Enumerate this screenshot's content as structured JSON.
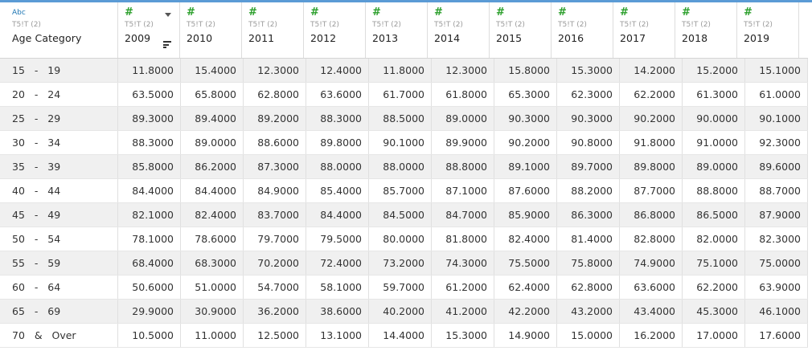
{
  "table": {
    "category_column": {
      "type_icon": "Abc",
      "source": "T5!T (2)",
      "name": "Age Category"
    },
    "year_columns": [
      {
        "type_icon": "#",
        "source": "T5!T (2)",
        "name": "2009"
      },
      {
        "type_icon": "#",
        "source": "T5!T (2)",
        "name": "2010"
      },
      {
        "type_icon": "#",
        "source": "T5!T (2)",
        "name": "2011"
      },
      {
        "type_icon": "#",
        "source": "T5!T (2)",
        "name": "2012"
      },
      {
        "type_icon": "#",
        "source": "T5!T (2)",
        "name": "2013"
      },
      {
        "type_icon": "#",
        "source": "T5!T (2)",
        "name": "2014"
      },
      {
        "type_icon": "#",
        "source": "T5!T (2)",
        "name": "2015"
      },
      {
        "type_icon": "#",
        "source": "T5!T (2)",
        "name": "2016"
      },
      {
        "type_icon": "#",
        "source": "T5!T (2)",
        "name": "2017"
      },
      {
        "type_icon": "#",
        "source": "T5!T (2)",
        "name": "2018"
      },
      {
        "type_icon": "#",
        "source": "T5!T (2)",
        "name": "2019"
      }
    ],
    "rows": [
      {
        "category": "15   -   19",
        "values": [
          "11.8000",
          "15.4000",
          "12.3000",
          "12.4000",
          "11.8000",
          "12.3000",
          "15.8000",
          "15.3000",
          "14.2000",
          "15.2000",
          "15.1000"
        ]
      },
      {
        "category": "20   -   24",
        "values": [
          "63.5000",
          "65.8000",
          "62.8000",
          "63.6000",
          "61.7000",
          "61.8000",
          "65.3000",
          "62.3000",
          "62.2000",
          "61.3000",
          "61.0000"
        ]
      },
      {
        "category": "25   -   29",
        "values": [
          "89.3000",
          "89.4000",
          "89.2000",
          "88.3000",
          "88.5000",
          "89.0000",
          "90.3000",
          "90.3000",
          "90.2000",
          "90.0000",
          "90.1000"
        ]
      },
      {
        "category": "30   -   34",
        "values": [
          "88.3000",
          "89.0000",
          "88.6000",
          "89.8000",
          "90.1000",
          "89.9000",
          "90.2000",
          "90.8000",
          "91.8000",
          "91.0000",
          "92.3000"
        ]
      },
      {
        "category": "35   -   39",
        "values": [
          "85.8000",
          "86.2000",
          "87.3000",
          "88.0000",
          "88.0000",
          "88.8000",
          "89.1000",
          "89.7000",
          "89.8000",
          "89.0000",
          "89.6000"
        ]
      },
      {
        "category": "40   -   44",
        "values": [
          "84.4000",
          "84.4000",
          "84.9000",
          "85.4000",
          "85.7000",
          "87.1000",
          "87.6000",
          "88.2000",
          "87.7000",
          "88.8000",
          "88.7000"
        ]
      },
      {
        "category": "45   -   49",
        "values": [
          "82.1000",
          "82.4000",
          "83.7000",
          "84.4000",
          "84.5000",
          "84.7000",
          "85.9000",
          "86.3000",
          "86.8000",
          "86.5000",
          "87.9000"
        ]
      },
      {
        "category": "50   -   54",
        "values": [
          "78.1000",
          "78.6000",
          "79.7000",
          "79.5000",
          "80.0000",
          "81.8000",
          "82.4000",
          "81.4000",
          "82.8000",
          "82.0000",
          "82.3000"
        ]
      },
      {
        "category": "55   -   59",
        "values": [
          "68.4000",
          "68.3000",
          "70.2000",
          "72.4000",
          "73.2000",
          "74.3000",
          "75.5000",
          "75.8000",
          "74.9000",
          "75.1000",
          "75.0000"
        ]
      },
      {
        "category": "60   -   64",
        "values": [
          "50.6000",
          "51.0000",
          "54.7000",
          "58.1000",
          "59.7000",
          "61.2000",
          "62.4000",
          "62.8000",
          "63.6000",
          "62.2000",
          "63.9000"
        ]
      },
      {
        "category": "65   -   69",
        "values": [
          "29.9000",
          "30.9000",
          "36.2000",
          "38.6000",
          "40.2000",
          "41.2000",
          "42.2000",
          "43.2000",
          "43.4000",
          "45.3000",
          "46.1000"
        ]
      },
      {
        "category": "70   &   Over",
        "values": [
          "10.5000",
          "11.0000",
          "12.5000",
          "13.1000",
          "14.4000",
          "15.3000",
          "14.9000",
          "15.0000",
          "16.2000",
          "17.0000",
          "17.6000"
        ]
      }
    ]
  },
  "icons": {
    "dropdown": "chevron-down-icon",
    "sort": "sort-icon"
  },
  "colors": {
    "header_accent": "#5b9bd5",
    "string_type": "#1f77b4",
    "number_type": "#2ca02c",
    "row_band": "#f0f0f0"
  }
}
